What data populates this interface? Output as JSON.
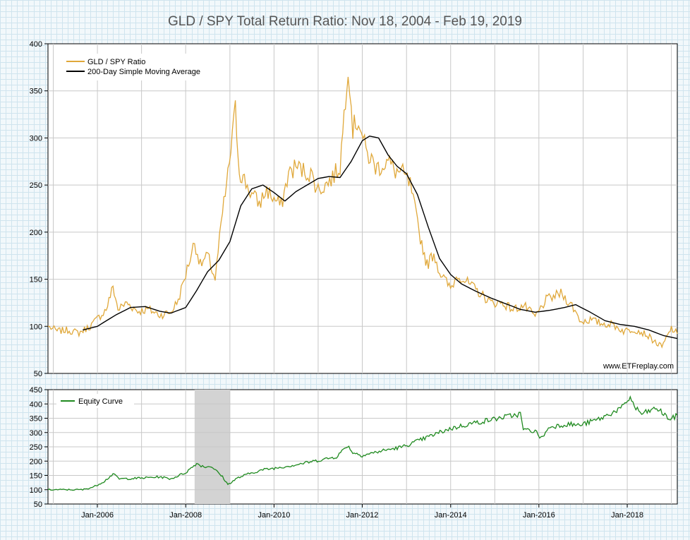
{
  "title": "GLD / SPY Total Return Ratio: Nov 18, 2004 - Feb 19, 2019",
  "watermark": "www.ETFreplay.com",
  "colors": {
    "ratio": "#e0a83a",
    "sma": "#000000",
    "equity": "#1f8a1f",
    "grid": "#c8c8c8",
    "shade": "#d3d3d3",
    "title": "#555555"
  },
  "chart_data": [
    {
      "type": "line",
      "title": "GLD / SPY Total Return Ratio: Nov 18, 2004 - Feb 19, 2019",
      "xlabel": "",
      "ylabel": "",
      "x_range": [
        "2004-11-18",
        "2019-02-19"
      ],
      "ylim": [
        50,
        400
      ],
      "y_ticks": [
        "50",
        "100",
        "150",
        "200",
        "250",
        "300",
        "350",
        "400"
      ],
      "grid": true,
      "legend_position": "top-left",
      "series": [
        {
          "name": "GLD / SPY Ratio",
          "points": [
            [
              "2004-11-18",
              100
            ],
            [
              "2005-02-01",
              95
            ],
            [
              "2005-05-01",
              96
            ],
            [
              "2005-08-01",
              93
            ],
            [
              "2005-11-01",
              100
            ],
            [
              "2006-01-01",
              108
            ],
            [
              "2006-03-15",
              118
            ],
            [
              "2006-05-10",
              142
            ],
            [
              "2006-06-20",
              118
            ],
            [
              "2006-09-01",
              125
            ],
            [
              "2006-12-01",
              116
            ],
            [
              "2007-03-01",
              118
            ],
            [
              "2007-06-01",
              112
            ],
            [
              "2007-09-01",
              115
            ],
            [
              "2007-11-01",
              128
            ],
            [
              "2008-01-01",
              155
            ],
            [
              "2008-03-15",
              190
            ],
            [
              "2008-05-01",
              165
            ],
            [
              "2008-07-01",
              175
            ],
            [
              "2008-09-01",
              150
            ],
            [
              "2008-11-01",
              220
            ],
            [
              "2008-12-15",
              260
            ],
            [
              "2009-02-15",
              330
            ],
            [
              "2009-03-20",
              265
            ],
            [
              "2009-05-01",
              255
            ],
            [
              "2009-07-01",
              240
            ],
            [
              "2009-09-01",
              230
            ],
            [
              "2009-11-01",
              245
            ],
            [
              "2010-01-01",
              235
            ],
            [
              "2010-03-01",
              228
            ],
            [
              "2010-05-01",
              262
            ],
            [
              "2010-07-01",
              270
            ],
            [
              "2010-09-01",
              265
            ],
            [
              "2010-11-01",
              262
            ],
            [
              "2011-01-01",
              245
            ],
            [
              "2011-03-01",
              250
            ],
            [
              "2011-05-01",
              258
            ],
            [
              "2011-07-01",
              270
            ],
            [
              "2011-09-06",
              380
            ],
            [
              "2011-10-15",
              310
            ],
            [
              "2011-12-01",
              320
            ],
            [
              "2012-02-01",
              285
            ],
            [
              "2012-05-01",
              268
            ],
            [
              "2012-08-01",
              275
            ],
            [
              "2012-10-01",
              265
            ],
            [
              "2012-12-01",
              262
            ],
            [
              "2013-02-01",
              250
            ],
            [
              "2013-04-15",
              200
            ],
            [
              "2013-06-20",
              165
            ],
            [
              "2013-08-15",
              178
            ],
            [
              "2013-10-01",
              158
            ],
            [
              "2013-12-31",
              140
            ],
            [
              "2014-03-01",
              155
            ],
            [
              "2014-06-01",
              145
            ],
            [
              "2014-09-01",
              135
            ],
            [
              "2014-12-01",
              125
            ],
            [
              "2015-03-01",
              125
            ],
            [
              "2015-06-01",
              118
            ],
            [
              "2015-09-01",
              122
            ],
            [
              "2015-12-01",
              110
            ],
            [
              "2016-03-01",
              128
            ],
            [
              "2016-07-01",
              135
            ],
            [
              "2016-10-01",
              122
            ],
            [
              "2016-12-15",
              105
            ],
            [
              "2017-03-01",
              107
            ],
            [
              "2017-06-01",
              103
            ],
            [
              "2017-09-01",
              102
            ],
            [
              "2017-12-01",
              95
            ],
            [
              "2018-03-01",
              97
            ],
            [
              "2018-06-01",
              92
            ],
            [
              "2018-09-01",
              82
            ],
            [
              "2018-10-15",
              78
            ],
            [
              "2018-12-01",
              90
            ],
            [
              "2019-01-01",
              98
            ],
            [
              "2019-02-19",
              92
            ]
          ]
        },
        {
          "name": "200-Day Simple Moving Average",
          "points": [
            [
              "2005-09-01",
              96
            ],
            [
              "2006-01-01",
              100
            ],
            [
              "2006-06-01",
              112
            ],
            [
              "2006-10-01",
              120
            ],
            [
              "2007-02-01",
              121
            ],
            [
              "2007-06-01",
              116
            ],
            [
              "2007-09-01",
              114
            ],
            [
              "2008-01-01",
              120
            ],
            [
              "2008-04-01",
              138
            ],
            [
              "2008-07-01",
              158
            ],
            [
              "2008-10-01",
              170
            ],
            [
              "2009-01-01",
              190
            ],
            [
              "2009-04-01",
              228
            ],
            [
              "2009-07-01",
              246
            ],
            [
              "2009-10-01",
              250
            ],
            [
              "2010-01-01",
              242
            ],
            [
              "2010-04-01",
              233
            ],
            [
              "2010-07-01",
              243
            ],
            [
              "2010-10-01",
              250
            ],
            [
              "2011-01-01",
              257
            ],
            [
              "2011-04-01",
              259
            ],
            [
              "2011-07-01",
              258
            ],
            [
              "2011-10-01",
              275
            ],
            [
              "2012-01-01",
              297
            ],
            [
              "2012-03-01",
              302
            ],
            [
              "2012-05-15",
              300
            ],
            [
              "2012-08-01",
              282
            ],
            [
              "2012-10-15",
              270
            ],
            [
              "2013-01-01",
              262
            ],
            [
              "2013-04-01",
              240
            ],
            [
              "2013-07-01",
              205
            ],
            [
              "2013-10-01",
              172
            ],
            [
              "2014-01-01",
              155
            ],
            [
              "2014-04-01",
              145
            ],
            [
              "2014-08-01",
              137
            ],
            [
              "2014-12-01",
              130
            ],
            [
              "2015-04-01",
              124
            ],
            [
              "2015-08-01",
              118
            ],
            [
              "2015-12-01",
              115
            ],
            [
              "2016-04-01",
              117
            ],
            [
              "2016-08-01",
              120
            ],
            [
              "2016-11-01",
              123
            ],
            [
              "2017-03-01",
              115
            ],
            [
              "2017-07-01",
              106
            ],
            [
              "2017-11-01",
              102
            ],
            [
              "2018-03-01",
              100
            ],
            [
              "2018-07-01",
              96
            ],
            [
              "2018-11-01",
              90
            ],
            [
              "2019-02-19",
              87
            ]
          ]
        }
      ]
    },
    {
      "type": "line",
      "title": "",
      "xlabel": "",
      "ylabel": "",
      "x_range": [
        "2004-11-18",
        "2019-02-19"
      ],
      "ylim": [
        50,
        450
      ],
      "y_ticks": [
        "50",
        "100",
        "150",
        "200",
        "250",
        "300",
        "350",
        "400",
        "450"
      ],
      "x_ticks": [
        {
          "date": "2006-01-01",
          "label": "Jan-2006"
        },
        {
          "date": "2008-01-01",
          "label": "Jan-2008"
        },
        {
          "date": "2010-01-01",
          "label": "Jan-2010"
        },
        {
          "date": "2012-01-01",
          "label": "Jan-2012"
        },
        {
          "date": "2014-01-01",
          "label": "Jan-2014"
        },
        {
          "date": "2016-01-01",
          "label": "Jan-2016"
        },
        {
          "date": "2018-01-01",
          "label": "Jan-2018"
        }
      ],
      "shaded_period": [
        "2008-03-15",
        "2009-01-01"
      ],
      "grid": true,
      "legend_position": "top-left",
      "series": [
        {
          "name": "Equity Curve",
          "points": [
            [
              "2004-11-18",
              100
            ],
            [
              "2005-09-01",
              100
            ],
            [
              "2005-12-01",
              110
            ],
            [
              "2006-03-01",
              130
            ],
            [
              "2006-05-10",
              155
            ],
            [
              "2006-07-01",
              138
            ],
            [
              "2006-12-01",
              140
            ],
            [
              "2007-06-01",
              145
            ],
            [
              "2007-09-01",
              138
            ],
            [
              "2008-01-01",
              160
            ],
            [
              "2008-04-01",
              192
            ],
            [
              "2008-06-01",
              180
            ],
            [
              "2008-08-01",
              182
            ],
            [
              "2008-11-01",
              145
            ],
            [
              "2008-12-15",
              118
            ],
            [
              "2009-03-01",
              140
            ],
            [
              "2009-06-01",
              155
            ],
            [
              "2009-10-01",
              170
            ],
            [
              "2010-01-01",
              175
            ],
            [
              "2010-06-01",
              185
            ],
            [
              "2010-12-01",
              200
            ],
            [
              "2011-06-01",
              215
            ],
            [
              "2011-09-01",
              255
            ],
            [
              "2011-10-15",
              230
            ],
            [
              "2012-01-01",
              220
            ],
            [
              "2012-06-01",
              235
            ],
            [
              "2012-12-01",
              250
            ],
            [
              "2013-06-01",
              280
            ],
            [
              "2013-12-01",
              310
            ],
            [
              "2014-06-01",
              330
            ],
            [
              "2014-12-01",
              345
            ],
            [
              "2015-06-01",
              360
            ],
            [
              "2015-08-01",
              365
            ],
            [
              "2015-08-25",
              310
            ],
            [
              "2015-12-01",
              305
            ],
            [
              "2016-01-20",
              280
            ],
            [
              "2016-04-01",
              320
            ],
            [
              "2016-09-01",
              330
            ],
            [
              "2016-12-01",
              325
            ],
            [
              "2017-06-01",
              350
            ],
            [
              "2017-12-01",
              390
            ],
            [
              "2018-01-26",
              425
            ],
            [
              "2018-03-01",
              390
            ],
            [
              "2018-05-01",
              365
            ],
            [
              "2018-09-01",
              385
            ],
            [
              "2018-12-24",
              345
            ],
            [
              "2019-02-19",
              360
            ]
          ]
        }
      ]
    }
  ]
}
